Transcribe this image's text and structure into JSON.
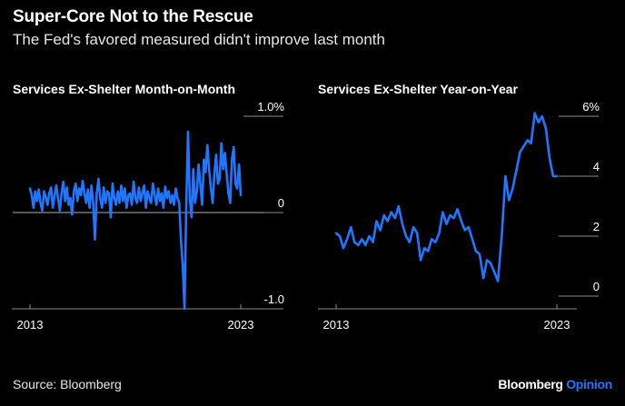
{
  "header": {
    "title": "Super-Core Not to the Rescue",
    "subtitle": "The Fed's favored measured didn't improve last month"
  },
  "footer": {
    "source": "Source: Bloomberg",
    "brand_main": "Bloomberg",
    "brand_sub": "Opinion"
  },
  "colors": {
    "background": "#000000",
    "line": "#1f77ff",
    "axis": "#8c8c8c",
    "text": "#ffffff"
  },
  "chart_data": [
    {
      "type": "line",
      "title": "Services Ex-Shelter Month-on-Month",
      "xlabel": "",
      "ylabel": "",
      "ylim": [
        -1.0,
        1.0
      ],
      "y_ticks": [
        {
          "value": 1.0,
          "label": "1.0%"
        },
        {
          "value": 0,
          "label": "0"
        },
        {
          "value": -1.0,
          "label": "-1.0"
        }
      ],
      "x_ticks": [
        {
          "value": 2013,
          "label": "2013"
        },
        {
          "value": 2023,
          "label": "2023"
        }
      ],
      "xlim": [
        2013,
        2023
      ],
      "zero_line": true,
      "series": [
        {
          "x": [
            2013.0,
            2013.08,
            2013.17,
            2013.25,
            2013.33,
            2013.42,
            2013.5,
            2013.58,
            2013.67,
            2013.75,
            2013.83,
            2013.92,
            2014.0,
            2014.08,
            2014.17,
            2014.25,
            2014.33,
            2014.42,
            2014.5,
            2014.58,
            2014.67,
            2014.75,
            2014.83,
            2014.92,
            2015.0,
            2015.08,
            2015.17,
            2015.25,
            2015.33,
            2015.42,
            2015.5,
            2015.58,
            2015.67,
            2015.75,
            2015.83,
            2015.92,
            2016.0,
            2016.08,
            2016.17,
            2016.25,
            2016.33,
            2016.42,
            2016.5,
            2016.58,
            2016.67,
            2016.75,
            2016.83,
            2016.92,
            2017.0,
            2017.08,
            2017.17,
            2017.25,
            2017.33,
            2017.42,
            2017.5,
            2017.58,
            2017.67,
            2017.75,
            2017.83,
            2017.92,
            2018.0,
            2018.08,
            2018.17,
            2018.25,
            2018.33,
            2018.42,
            2018.5,
            2018.58,
            2018.67,
            2018.75,
            2018.83,
            2018.92,
            2019.0,
            2019.08,
            2019.17,
            2019.25,
            2019.33,
            2019.42,
            2019.5,
            2019.58,
            2019.67,
            2019.75,
            2019.83,
            2019.92,
            2020.0,
            2020.08,
            2020.17,
            2020.25,
            2020.33,
            2020.42,
            2020.5,
            2020.58,
            2020.67,
            2020.75,
            2020.83,
            2020.92,
            2021.0,
            2021.08,
            2021.17,
            2021.25,
            2021.33,
            2021.42,
            2021.5,
            2021.58,
            2021.67,
            2021.75,
            2021.83,
            2021.92,
            2022.0,
            2022.08,
            2022.17,
            2022.25,
            2022.33,
            2022.42,
            2022.5,
            2022.58,
            2022.67,
            2022.75,
            2022.83,
            2022.92,
            2023.0
          ],
          "values": [
            0.25,
            0.18,
            0.05,
            0.22,
            0.12,
            0.24,
            0.1,
            0.02,
            0.22,
            0.16,
            0.08,
            0.2,
            0.26,
            0.05,
            0.18,
            0.28,
            0.15,
            0.02,
            0.2,
            0.32,
            0.12,
            0.26,
            0.08,
            0.15,
            -0.02,
            0.22,
            0.3,
            0.12,
            0.25,
            0.18,
            0.33,
            0.2,
            0.1,
            0.24,
            0.05,
            0.28,
            0.1,
            -0.28,
            0.2,
            0.35,
            0.15,
            0.05,
            0.26,
            0.1,
            0.22,
            0.2,
            -0.05,
            0.3,
            0.15,
            0.08,
            0.22,
            0.1,
            0.28,
            0.12,
            0.25,
            0.05,
            0.18,
            0.2,
            0.08,
            0.32,
            0.15,
            0.1,
            0.26,
            0.12,
            0.2,
            0.28,
            0.05,
            0.22,
            0.15,
            0.1,
            0.3,
            0.18,
            0.08,
            0.25,
            0.12,
            0.2,
            0.05,
            0.27,
            0.15,
            0.22,
            0.1,
            0.18,
            0.08,
            0.25,
            0.15,
            0.1,
            -0.3,
            -0.55,
            -1.0,
            0.1,
            0.84,
            0.15,
            -0.05,
            0.45,
            0.1,
            0.22,
            0.5,
            0.3,
            0.08,
            0.55,
            0.42,
            0.7,
            0.45,
            0.25,
            0.1,
            0.4,
            0.6,
            0.3,
            0.35,
            0.72,
            0.45,
            0.62,
            0.4,
            0.2,
            0.1,
            0.55,
            0.68,
            0.3,
            0.25,
            0.5,
            0.18
          ]
        }
      ]
    },
    {
      "type": "line",
      "title": "Services Ex-Shelter Year-on-Year",
      "xlabel": "",
      "ylabel": "",
      "ylim": [
        0,
        6
      ],
      "y_ticks": [
        {
          "value": 6,
          "label": "6%"
        },
        {
          "value": 4,
          "label": "4"
        },
        {
          "value": 2,
          "label": "2"
        },
        {
          "value": 0,
          "label": "0"
        }
      ],
      "x_ticks": [
        {
          "value": 2013,
          "label": "2013"
        },
        {
          "value": 2023,
          "label": "2023"
        }
      ],
      "xlim": [
        2013,
        2023
      ],
      "zero_line": false,
      "series": [
        {
          "x": [
            2013.0,
            2013.17,
            2013.33,
            2013.5,
            2013.67,
            2013.83,
            2014.0,
            2014.17,
            2014.33,
            2014.5,
            2014.67,
            2014.83,
            2015.0,
            2015.17,
            2015.33,
            2015.5,
            2015.67,
            2015.83,
            2016.0,
            2016.17,
            2016.33,
            2016.5,
            2016.67,
            2016.83,
            2017.0,
            2017.17,
            2017.33,
            2017.5,
            2017.67,
            2017.83,
            2018.0,
            2018.17,
            2018.33,
            2018.5,
            2018.67,
            2018.83,
            2019.0,
            2019.17,
            2019.33,
            2019.5,
            2019.67,
            2019.83,
            2020.0,
            2020.17,
            2020.33,
            2020.5,
            2020.67,
            2020.83,
            2021.0,
            2021.17,
            2021.33,
            2021.5,
            2021.67,
            2021.83,
            2022.0,
            2022.17,
            2022.33,
            2022.5,
            2022.67,
            2022.83,
            2023.0
          ],
          "values": [
            2.1,
            2.0,
            1.6,
            1.9,
            2.3,
            1.8,
            1.7,
            1.9,
            1.7,
            2.0,
            1.8,
            2.5,
            2.2,
            2.7,
            2.5,
            2.8,
            2.6,
            3.0,
            2.4,
            2.0,
            1.8,
            2.3,
            2.1,
            1.2,
            1.6,
            1.5,
            1.9,
            1.8,
            2.1,
            2.8,
            2.4,
            2.7,
            2.6,
            2.9,
            2.5,
            2.2,
            2.3,
            1.9,
            1.5,
            1.4,
            0.6,
            1.2,
            1.1,
            0.8,
            0.5,
            2.0,
            4.0,
            3.2,
            3.6,
            4.2,
            4.8,
            5.0,
            5.2,
            5.1,
            6.1,
            5.8,
            6.0,
            5.6,
            4.6,
            4.0,
            4.0
          ]
        }
      ]
    }
  ]
}
